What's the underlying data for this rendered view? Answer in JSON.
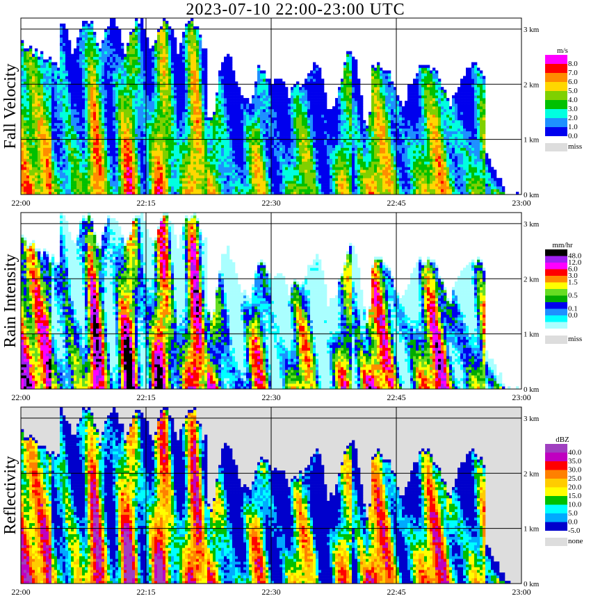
{
  "title": "2023-07-10   22:00-23:00 UTC",
  "x_ticks": [
    "22:00",
    "22:15",
    "22:30",
    "22:45",
    "23:00"
  ],
  "y_ticks": [
    "0 km",
    "1 km",
    "2 km",
    "3 km"
  ],
  "chart_data": [
    {
      "type": "heatmap",
      "label": "Fall Velocity",
      "unit": "m/s",
      "xlim": [
        "22:00",
        "23:00"
      ],
      "ylim": [
        0,
        3.2
      ],
      "legend_placement": "right",
      "legend": [
        {
          "value": "8.0",
          "color": "#ff00ff"
        },
        {
          "value": "7.0",
          "color": "#ff0000"
        },
        {
          "value": "6.0",
          "color": "#ff8c00"
        },
        {
          "value": "5.0",
          "color": "#ffd700"
        },
        {
          "value": "4.0",
          "color": "#7fd000"
        },
        {
          "value": "3.0",
          "color": "#00c000"
        },
        {
          "value": "2.0",
          "color": "#00ffe0"
        },
        {
          "value": "1.0",
          "color": "#1e90ff"
        },
        {
          "value": "0.0",
          "color": "#0000ee"
        }
      ],
      "missing": {
        "label": "miss",
        "color": "#dddddd"
      }
    },
    {
      "type": "heatmap",
      "label": "Rain Intensity",
      "unit": "mm/hr",
      "xlim": [
        "22:00",
        "23:00"
      ],
      "ylim": [
        0,
        3.2
      ],
      "legend_placement": "right",
      "legend": [
        {
          "value": "48.0",
          "color": "#000000"
        },
        {
          "value": "12.0",
          "color": "#a020f0"
        },
        {
          "value": "6.0",
          "color": "#ff00ff"
        },
        {
          "value": "3.0",
          "color": "#ff0000"
        },
        {
          "value": "1.5",
          "color": "#ff8c00"
        },
        {
          "value": "",
          "color": "#ffff00"
        },
        {
          "value": "0.5",
          "color": "#66dd22"
        },
        {
          "value": "",
          "color": "#00aa00"
        },
        {
          "value": "0.1",
          "color": "#0000ee"
        },
        {
          "value": "0.0",
          "color": "#1e90ff"
        },
        {
          "value": "",
          "color": "#00ffff"
        },
        {
          "value": "",
          "color": "#aaffff"
        }
      ],
      "missing": {
        "label": "miss",
        "color": "#dddddd"
      }
    },
    {
      "type": "heatmap",
      "label": "Reflectivity",
      "unit": "dBZ",
      "xlim": [
        "22:00",
        "23:00"
      ],
      "ylim": [
        0,
        3.2
      ],
      "legend_placement": "right",
      "legend": [
        {
          "value": "40.0",
          "color": "#a040c0"
        },
        {
          "value": "35.0",
          "color": "#c000c0"
        },
        {
          "value": "30.0",
          "color": "#ff0000"
        },
        {
          "value": "25.0",
          "color": "#ff8000"
        },
        {
          "value": "20.0",
          "color": "#ffcc00"
        },
        {
          "value": "15.0",
          "color": "#ffff00"
        },
        {
          "value": "10.0",
          "color": "#00c000"
        },
        {
          "value": "5.0",
          "color": "#00ffff"
        },
        {
          "value": "0.0",
          "color": "#00aaff"
        },
        {
          "value": "-5.0",
          "color": "#0000cc"
        }
      ],
      "missing": {
        "label": "none",
        "color": "#dddddd"
      }
    }
  ]
}
